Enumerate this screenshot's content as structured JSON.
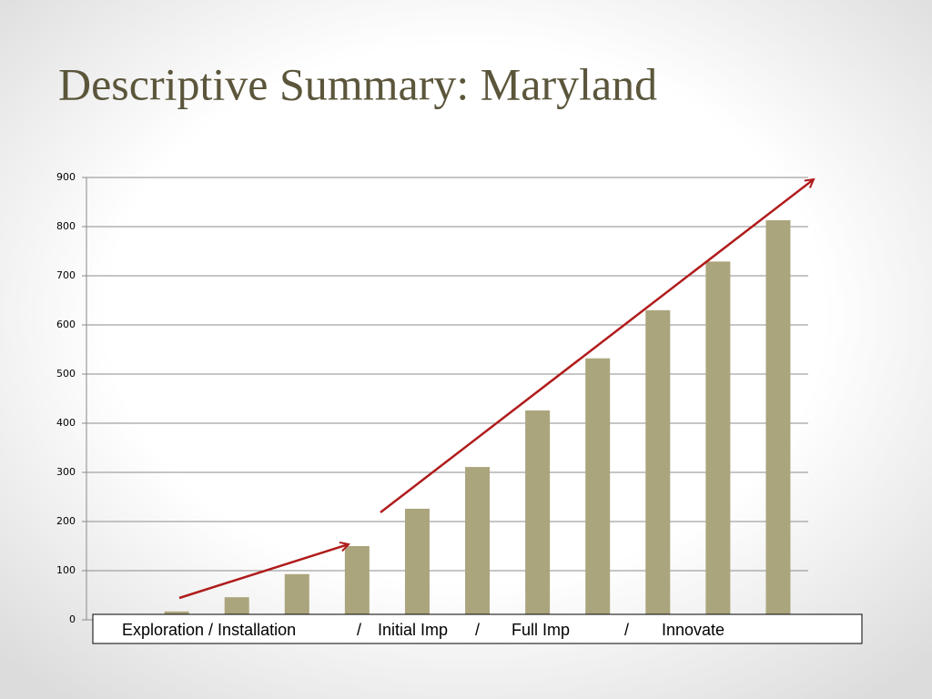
{
  "chart_data": {
    "type": "bar",
    "title": "Descriptive Summary: Maryland",
    "categories": [
      null,
      null,
      null,
      null,
      null,
      null,
      null,
      null,
      null,
      null,
      null,
      null
    ],
    "values": [
      0,
      17,
      46,
      93,
      150,
      226,
      311,
      426,
      532,
      630,
      729,
      813
    ],
    "color": "#aba57d",
    "ylim": [
      0,
      900
    ],
    "yticks": [
      0,
      100,
      200,
      300,
      400,
      500,
      600,
      700,
      800,
      900
    ],
    "grid": true,
    "annotations": [
      "Exploration / Installation",
      "/",
      "Initial Imp",
      "/",
      "Full Imp",
      "/",
      "Innovate"
    ]
  }
}
